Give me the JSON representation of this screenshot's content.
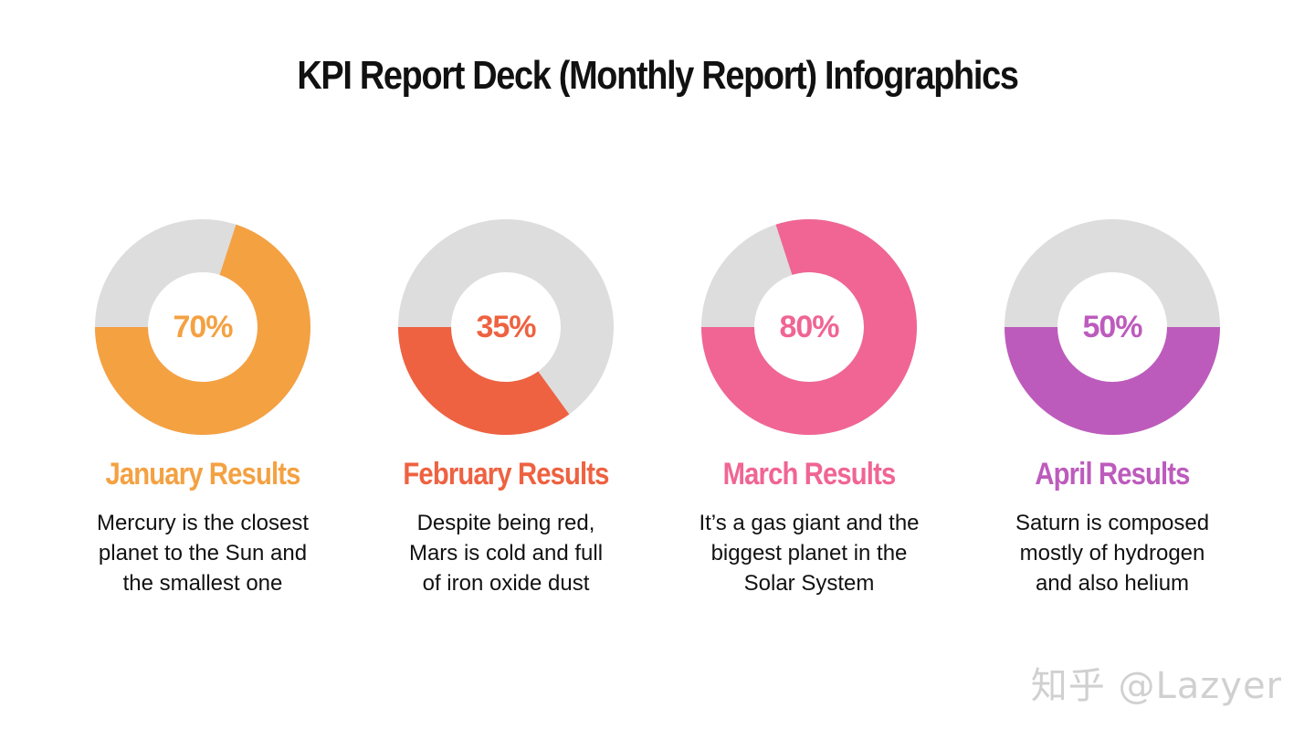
{
  "title": "KPI Report Deck (Monthly Report) Infographics",
  "colors": {
    "track": "#dddddd",
    "hole": "#ffffff"
  },
  "chart_data": [
    {
      "type": "pie",
      "variant": "donut",
      "value_label": "70%",
      "values": [
        70,
        30
      ],
      "color": "#f4a142",
      "title": "January Results",
      "description": [
        "Mercury is the closest",
        "planet to the Sun and",
        "the smallest one"
      ]
    },
    {
      "type": "pie",
      "variant": "donut",
      "value_label": "35%",
      "values": [
        35,
        65
      ],
      "color": "#ee6241",
      "title": "February Results",
      "description": [
        "Despite being red,",
        "Mars is cold and full",
        "of iron oxide dust"
      ]
    },
    {
      "type": "pie",
      "variant": "donut",
      "value_label": "80%",
      "values": [
        80,
        20
      ],
      "color": "#f06594",
      "title": "March Results",
      "description": [
        "It’s a gas giant and the",
        "biggest planet in the",
        "Solar System"
      ]
    },
    {
      "type": "pie",
      "variant": "donut",
      "value_label": "50%",
      "values": [
        50,
        50
      ],
      "color": "#bd5bbd",
      "title": "April Results",
      "description": [
        "Saturn is composed",
        "mostly of hydrogen",
        "and also helium"
      ]
    }
  ],
  "watermark": "知乎 @Lazyer"
}
